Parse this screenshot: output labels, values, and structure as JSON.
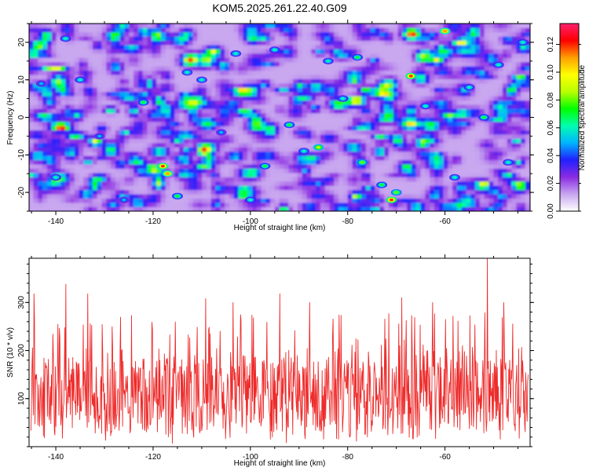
{
  "title": "KOM5.2025.261.22.40.G09",
  "colors": {
    "snr_line": "#ee2b2b",
    "colormap": [
      "#ffffff",
      "#c8a6f0",
      "#8a2be2",
      "#2020ff",
      "#00b4ff",
      "#00ffb0",
      "#00ff00",
      "#b8ff00",
      "#ffff00",
      "#ffa000",
      "#ff0000",
      "#ff1e6e"
    ]
  },
  "chart_data": [
    {
      "type": "heatmap",
      "title": "KOM5.2025.261.22.40.G09",
      "xlabel": "Height of straight line (km)",
      "ylabel": "Frequency (Hz)",
      "xlim": [
        -145.5,
        -42.5
      ],
      "ylim": [
        -25,
        25
      ],
      "xticks": [
        -140,
        -120,
        -100,
        -80,
        -60
      ],
      "yticks": [
        -20,
        -10,
        0,
        10,
        20
      ],
      "xtick_labels": [
        "-140",
        "-120",
        "-100",
        "-80",
        "-60"
      ],
      "ytick_labels": [
        "-20",
        "-10",
        "0",
        "10",
        "20"
      ],
      "colorbar": {
        "label": "Normalized spectral amplitude",
        "range": [
          0,
          0.135
        ],
        "ticks": [
          0,
          0.02,
          0.04,
          0.06,
          0.08,
          0.1,
          0.12
        ],
        "tick_labels": [
          "0.00",
          "0.02",
          "0.04",
          "0.06",
          "0.08",
          "0.10",
          "0.12"
        ]
      },
      "background_level": 0.02,
      "peaks": [
        {
          "x": -138,
          "y": 21,
          "v": 0.06
        },
        {
          "x": -135,
          "y": 10,
          "v": 0.06
        },
        {
          "x": -143,
          "y": 9,
          "v": 0.05
        },
        {
          "x": -131,
          "y": -5,
          "v": 0.05
        },
        {
          "x": -140,
          "y": -16,
          "v": 0.06
        },
        {
          "x": -126,
          "y": -22,
          "v": 0.05
        },
        {
          "x": -122,
          "y": 4,
          "v": 0.07
        },
        {
          "x": -118,
          "y": -13,
          "v": 0.12
        },
        {
          "x": -117,
          "y": -15,
          "v": 0.11
        },
        {
          "x": -115,
          "y": -21,
          "v": 0.07
        },
        {
          "x": -113,
          "y": 12,
          "v": 0.06
        },
        {
          "x": -110,
          "y": 10,
          "v": 0.06
        },
        {
          "x": -106,
          "y": -4,
          "v": 0.05
        },
        {
          "x": -103,
          "y": 17,
          "v": 0.06
        },
        {
          "x": -100,
          "y": -22,
          "v": 0.06
        },
        {
          "x": -97,
          "y": -13,
          "v": 0.07
        },
        {
          "x": -95,
          "y": 18,
          "v": 0.06
        },
        {
          "x": -92,
          "y": -2,
          "v": 0.07
        },
        {
          "x": -89,
          "y": -9,
          "v": 0.06
        },
        {
          "x": -86,
          "y": -8,
          "v": 0.09
        },
        {
          "x": -84,
          "y": 15,
          "v": 0.06
        },
        {
          "x": -81,
          "y": 5,
          "v": 0.06
        },
        {
          "x": -78,
          "y": 16,
          "v": 0.07
        },
        {
          "x": -77,
          "y": -12,
          "v": 0.08
        },
        {
          "x": -73,
          "y": -18,
          "v": 0.07
        },
        {
          "x": -71,
          "y": -22,
          "v": 0.12
        },
        {
          "x": -70,
          "y": -20,
          "v": 0.08
        },
        {
          "x": -67,
          "y": 11,
          "v": 0.12
        },
        {
          "x": -64,
          "y": 3,
          "v": 0.06
        },
        {
          "x": -60,
          "y": 23,
          "v": 0.11
        },
        {
          "x": -58,
          "y": -16,
          "v": 0.06
        },
        {
          "x": -55,
          "y": 8,
          "v": 0.06
        },
        {
          "x": -52,
          "y": 0,
          "v": 0.07
        },
        {
          "x": -49,
          "y": 14,
          "v": 0.06
        },
        {
          "x": -47,
          "y": -12,
          "v": 0.06
        },
        {
          "x": -44,
          "y": 20,
          "v": 0.06
        }
      ]
    },
    {
      "type": "line",
      "xlabel": "Height of straight line (km)",
      "ylabel": "SNR (10 * v/v)",
      "xlim": [
        -145.5,
        -42.5
      ],
      "ylim": [
        0,
        392
      ],
      "xticks": [
        -140,
        -120,
        -100,
        -80,
        -60
      ],
      "yticks": [
        100,
        200,
        300
      ],
      "xtick_labels": [
        "-140",
        "-120",
        "-100",
        "-80",
        "-60"
      ],
      "ytick_labels": [
        "100",
        "200",
        "300"
      ],
      "series": [
        {
          "color": "#ee2b2b",
          "n_points": 1000,
          "baseline_mean": 110,
          "typical_range": [
            20,
            240
          ],
          "peaks": [
            {
              "x": -144.5,
              "y": 318
            },
            {
              "x": -137.9,
              "y": 338
            },
            {
              "x": -133.4,
              "y": 318
            },
            {
              "x": -109.2,
              "y": 308
            },
            {
              "x": -103.6,
              "y": 300
            },
            {
              "x": -93.9,
              "y": 318
            },
            {
              "x": -87.8,
              "y": 300
            },
            {
              "x": -68.9,
              "y": 310
            },
            {
              "x": -62.5,
              "y": 300
            },
            {
              "x": -51.3,
              "y": 392
            },
            {
              "x": -47.9,
              "y": 300
            }
          ]
        }
      ]
    }
  ]
}
